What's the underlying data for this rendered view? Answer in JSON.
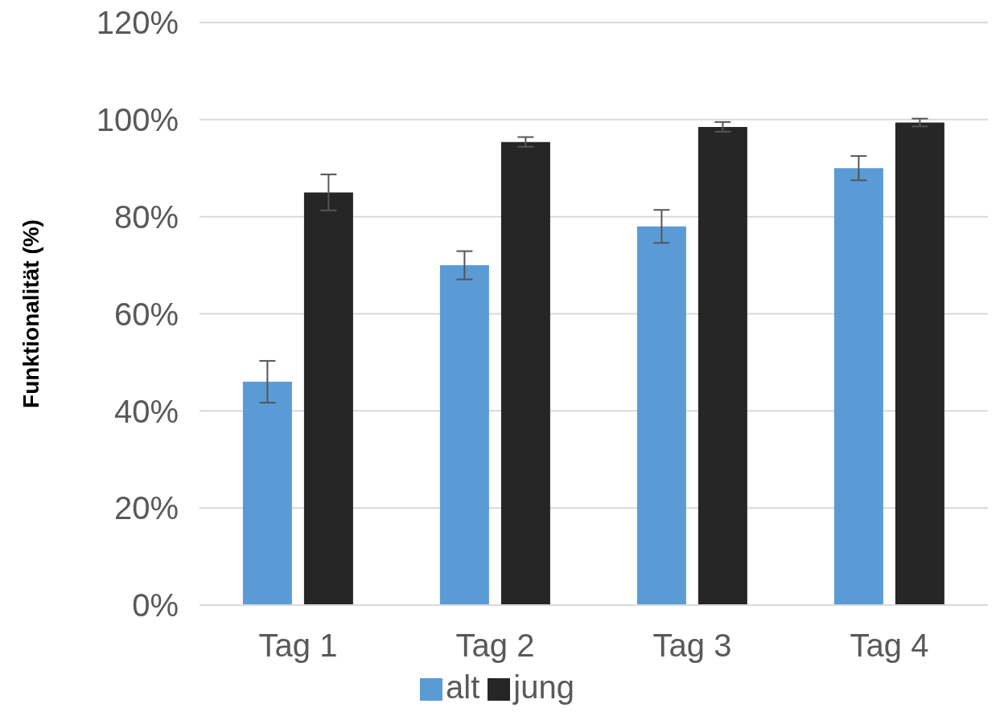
{
  "chart_data": {
    "type": "bar",
    "ylabel": "Funktionalität (%)",
    "categories": [
      "Tag 1",
      "Tag 2",
      "Tag 3",
      "Tag 4"
    ],
    "series": [
      {
        "name": "alt",
        "color": "#5b9bd5",
        "values": [
          46,
          70,
          78,
          90
        ],
        "errors": [
          4.3,
          2.9,
          3.4,
          2.5
        ]
      },
      {
        "name": "jung",
        "color": "#262626",
        "values": [
          85,
          95.4,
          98.5,
          99.4
        ],
        "errors": [
          3.7,
          1,
          1,
          0.8
        ]
      }
    ],
    "ylim": [
      0,
      120
    ],
    "yticks": [
      {
        "value": 0,
        "label": "0%"
      },
      {
        "value": 20,
        "label": "20%"
      },
      {
        "value": 40,
        "label": "40%"
      },
      {
        "value": 60,
        "label": "60%"
      },
      {
        "value": 80,
        "label": "80%"
      },
      {
        "value": 100,
        "label": "100%"
      },
      {
        "value": 120,
        "label": "120%"
      }
    ],
    "grid": "y",
    "legend": "bottom"
  }
}
